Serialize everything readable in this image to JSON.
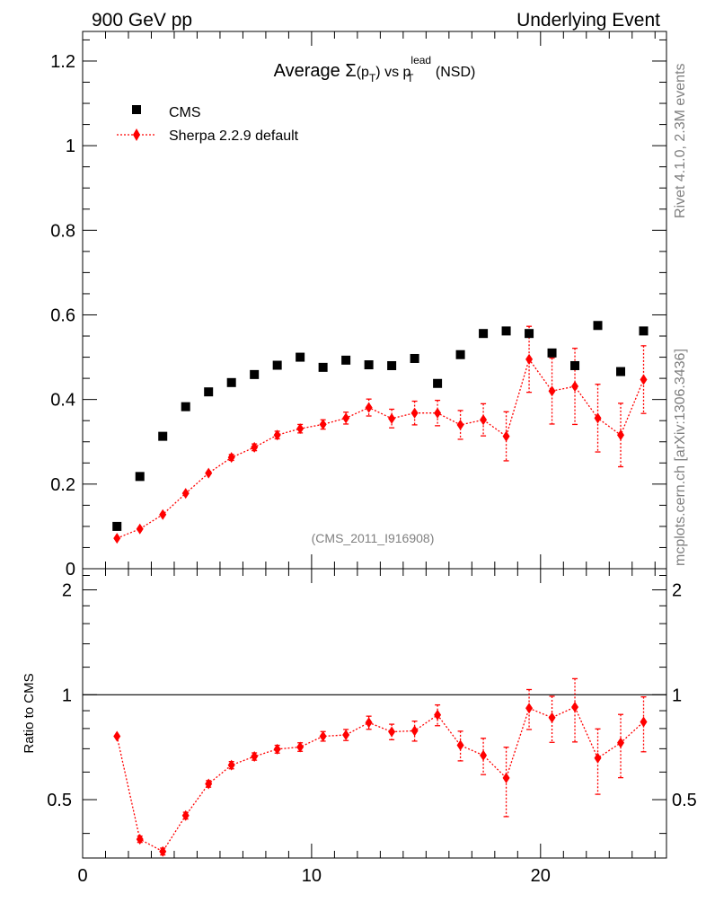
{
  "header": {
    "left": "900 GeV pp",
    "right": "Underlying Event"
  },
  "side": {
    "top": "Rivet 4.1.0,  2.3M events",
    "bottom": "mcplots.cern.ch [arXiv:1306.3436]"
  },
  "colors": {
    "data": "#000000",
    "mc": "#ff0000",
    "watermark": "#808080"
  },
  "chart_data": [
    {
      "type": "scatter",
      "title": "Average Σ(p_T) vs p_T^lead (NSD)",
      "title_parts": {
        "a": "Average ",
        "sigma": "Σ",
        "b": "(p",
        "sub1": "T",
        "c": ") vs p",
        "sup": "lead",
        "sub2": "T",
        "d": " (NSD)"
      },
      "watermark": "(CMS_2011_I916908)",
      "xlim": [
        0,
        25.5
      ],
      "ylim": [
        0,
        1.27
      ],
      "yticks": [
        0,
        0.2,
        0.4,
        0.6,
        0.8,
        1,
        1.2
      ],
      "ytick_labels": [
        "0",
        "0.2",
        "0.4",
        "0.6",
        "0.8",
        "1",
        "1.2"
      ],
      "legend": {
        "position": "top-left",
        "entries": [
          "CMS",
          "Sherpa 2.2.9 default"
        ]
      },
      "x": [
        1.5,
        2.5,
        3.5,
        4.5,
        5.5,
        6.5,
        7.5,
        8.5,
        9.5,
        10.5,
        11.5,
        12.5,
        13.5,
        14.5,
        15.5,
        16.5,
        17.5,
        18.5,
        19.5,
        20.5,
        21.5,
        22.5,
        23.5,
        24.5
      ],
      "series": [
        {
          "name": "CMS",
          "marker": "square",
          "values": [
            0.1,
            0.218,
            0.313,
            0.383,
            0.418,
            0.44,
            0.459,
            0.481,
            0.5,
            0.476,
            0.493,
            0.482,
            0.48,
            0.497,
            0.438,
            0.506,
            0.556,
            0.562,
            0.556,
            0.51,
            0.48,
            0.575,
            0.466,
            0.562
          ]
        },
        {
          "name": "Sherpa 2.2.9 default",
          "marker": "diamond",
          "line": "dotted",
          "values": [
            0.072,
            0.094,
            0.128,
            0.178,
            0.226,
            0.263,
            0.287,
            0.316,
            0.331,
            0.341,
            0.356,
            0.381,
            0.355,
            0.368,
            0.368,
            0.34,
            0.352,
            0.313,
            0.495,
            0.42,
            0.431,
            0.356,
            0.316,
            0.447
          ],
          "errors": [
            0.004,
            0.004,
            0.004,
            0.005,
            0.006,
            0.007,
            0.008,
            0.009,
            0.01,
            0.011,
            0.014,
            0.02,
            0.022,
            0.028,
            0.03,
            0.034,
            0.038,
            0.058,
            0.078,
            0.078,
            0.09,
            0.08,
            0.075,
            0.08
          ]
        }
      ]
    },
    {
      "type": "scatter",
      "ylabel": "Ratio to CMS",
      "xlim": [
        0,
        25.5
      ],
      "ylim": [
        0.34,
        2.3
      ],
      "yscale": "log",
      "yticks": [
        0.5,
        1,
        2
      ],
      "ytick_labels": [
        "0.5",
        "1",
        "2"
      ],
      "xticks": [
        0,
        10,
        20
      ],
      "xtick_labels": [
        "0",
        "10",
        "20"
      ],
      "reference_line": 1,
      "x": [
        1.5,
        2.5,
        3.5,
        4.5,
        5.5,
        6.5,
        7.5,
        8.5,
        9.5,
        10.5,
        11.5,
        12.5,
        13.5,
        14.5,
        15.5,
        16.5,
        17.5,
        18.5,
        19.5,
        20.5,
        21.5,
        22.5,
        23.5,
        24.5
      ],
      "series": [
        {
          "name": "Sherpa 2.2.9 default",
          "marker": "diamond",
          "line": "dotted",
          "values": [
            0.76,
            0.385,
            0.355,
            0.45,
            0.555,
            0.628,
            0.665,
            0.698,
            0.708,
            0.76,
            0.767,
            0.832,
            0.783,
            0.788,
            0.875,
            0.716,
            0.67,
            0.577,
            0.915,
            0.86,
            0.922,
            0.658,
            0.728,
            0.836
          ],
          "errors": [
            0.01,
            0.008,
            0.008,
            0.01,
            0.012,
            0.015,
            0.016,
            0.018,
            0.02,
            0.024,
            0.028,
            0.036,
            0.04,
            0.052,
            0.06,
            0.07,
            0.08,
            0.13,
            0.12,
            0.13,
            0.19,
            0.14,
            0.15,
            0.15
          ]
        }
      ]
    }
  ]
}
